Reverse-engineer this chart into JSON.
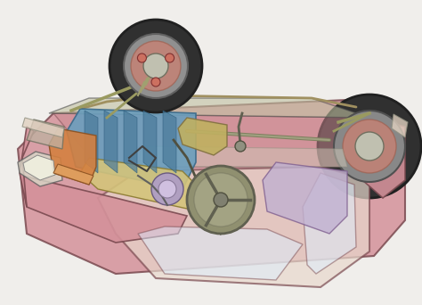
{
  "background_color": "#f0eeeb",
  "car_body_color": "#d4919a",
  "car_body_edge": "#7a4a50",
  "engine_blue": "#6a9fbe",
  "engine_yellow": "#d4c47a",
  "engine_purple": "#b09fc0",
  "engine_orange": "#d4874a",
  "wheel_dark": "#404040",
  "wheel_gray": "#909090",
  "brake_disk": "#d08070",
  "steering_wheel": "#909070",
  "battery_orange": "#d48040",
  "seat_purple": "#c0b0d0",
  "chassis_line": "#505050",
  "suspension_olive": "#9a9a60",
  "headlight_gray": "#d0d0d0",
  "figsize": [
    4.74,
    3.42
  ],
  "dpi": 100
}
